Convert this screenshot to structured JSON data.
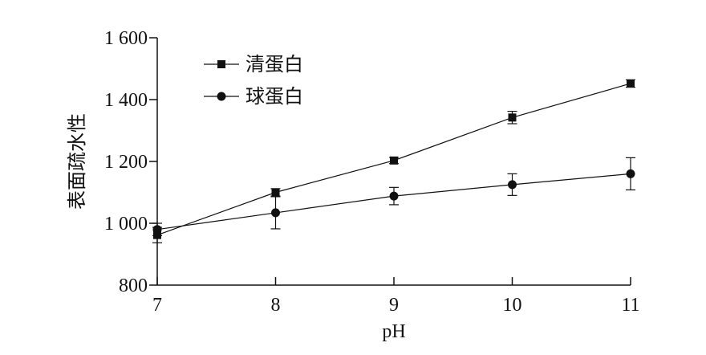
{
  "chart_data": {
    "type": "line",
    "x": [
      7,
      8,
      9,
      10,
      11
    ],
    "xticks": [
      7,
      8,
      9,
      10,
      11
    ],
    "yticks": [
      800,
      1000,
      1200,
      1400,
      1600
    ],
    "ytick_labels": [
      "800",
      "1 000",
      "1 200",
      "1 400",
      "1 600"
    ],
    "xlim": [
      7,
      11
    ],
    "ylim": [
      800,
      1600
    ],
    "xlabel": "pH",
    "ylabel": "表面疏水性",
    "legend_position": "top-left",
    "grid": false,
    "series": [
      {
        "name": "清蛋白",
        "marker": "square",
        "values": [
          962,
          1100,
          1203,
          1342,
          1452
        ],
        "errors": [
          25,
          12,
          10,
          20,
          12
        ]
      },
      {
        "name": "球蛋白",
        "marker": "circle",
        "values": [
          980,
          1034,
          1088,
          1125,
          1160
        ],
        "errors": [
          20,
          52,
          28,
          35,
          52
        ]
      }
    ],
    "colors": {
      "line": "#111111",
      "marker": "#111111"
    }
  }
}
